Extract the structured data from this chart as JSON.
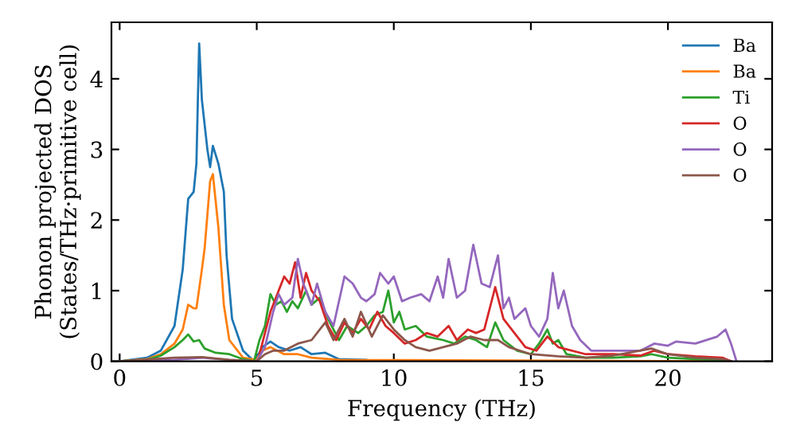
{
  "chart_data": {
    "type": "line",
    "xlabel": "Frequency (THz)",
    "ylabel": "Phonon projected DOS\n(States/THz·primitive cell)",
    "xlim": [
      -0.3,
      23.8
    ],
    "ylim": [
      0,
      4.8
    ],
    "xticks": [
      0,
      5,
      10,
      15,
      20
    ],
    "yticks": [
      0,
      1,
      2,
      3,
      4
    ],
    "grid": false,
    "legend": "top right",
    "marker": "none",
    "line_style": "solid",
    "series": [
      {
        "name": "Ba",
        "color": "#1f77b4",
        "x": [
          0,
          1,
          1.5,
          2,
          2.3,
          2.5,
          2.7,
          2.8,
          2.9,
          3.0,
          3.2,
          3.3,
          3.4,
          3.6,
          3.8,
          3.9,
          4.1,
          4.5,
          4.9,
          5.0,
          5.2,
          5.5,
          5.8,
          6.2,
          6.6,
          7,
          7.5,
          8,
          9
        ],
        "values": [
          0,
          0.05,
          0.15,
          0.5,
          1.3,
          2.3,
          2.4,
          2.8,
          4.5,
          3.7,
          3.0,
          2.75,
          3.05,
          2.8,
          2.4,
          1.5,
          0.6,
          0.15,
          0,
          0.05,
          0.2,
          0.28,
          0.2,
          0.15,
          0.2,
          0.1,
          0.12,
          0.03,
          0.02
        ]
      },
      {
        "name": "Ba",
        "color": "#ff7f0e",
        "x": [
          0,
          1,
          1.5,
          2,
          2.3,
          2.5,
          2.7,
          2.8,
          3.0,
          3.1,
          3.3,
          3.4,
          3.6,
          3.8,
          4.0,
          4.5,
          5,
          5.2,
          5.5,
          6,
          6.5,
          7,
          8,
          22.3
        ],
        "values": [
          0,
          0.03,
          0.1,
          0.25,
          0.45,
          0.8,
          0.75,
          0.75,
          1.3,
          1.6,
          2.55,
          2.65,
          1.9,
          0.8,
          0.3,
          0.05,
          0.02,
          0.15,
          0.2,
          0.1,
          0.1,
          0.05,
          0.02,
          0
        ]
      },
      {
        "name": "Ti",
        "color": "#2ca02c",
        "x": [
          0,
          1,
          1.5,
          2,
          2.3,
          2.5,
          2.7,
          2.9,
          3.1,
          3.5,
          4,
          4.5,
          4.9,
          5.1,
          5.3,
          5.5,
          5.7,
          5.9,
          6.1,
          6.3,
          6.5,
          6.8,
          7.0,
          7.3,
          7.6,
          8,
          8.3,
          8.7,
          9,
          9.3,
          9.6,
          9.8,
          10,
          10.2,
          10.4,
          10.8,
          11.2,
          11.8,
          12.2,
          12.6,
          13,
          13.4,
          13.7,
          14,
          14.5,
          15,
          15.3,
          15.6,
          15.8,
          16,
          16.3,
          17,
          18,
          19,
          19.4,
          20,
          21,
          22,
          22.3
        ],
        "values": [
          0,
          0.02,
          0.08,
          0.2,
          0.3,
          0.38,
          0.28,
          0.3,
          0.18,
          0.12,
          0.1,
          0.03,
          0,
          0.3,
          0.5,
          0.95,
          0.8,
          0.85,
          0.7,
          0.85,
          0.75,
          1.0,
          0.8,
          0.9,
          0.6,
          0.3,
          0.5,
          0.4,
          0.5,
          0.65,
          0.7,
          1.0,
          0.55,
          0.7,
          0.45,
          0.5,
          0.35,
          0.3,
          0.25,
          0.35,
          0.3,
          0.2,
          0.55,
          0.3,
          0.15,
          0.1,
          0.25,
          0.45,
          0.25,
          0.3,
          0.1,
          0.05,
          0.05,
          0.07,
          0.1,
          0.05,
          0.03,
          0.02,
          0
        ]
      },
      {
        "name": "O",
        "color": "#d62728",
        "x": [
          5.1,
          5.3,
          5.5,
          5.7,
          6.0,
          6.2,
          6.4,
          6.6,
          6.8,
          7.0,
          7.3,
          7.6,
          7.9,
          8.2,
          8.5,
          8.8,
          9.1,
          9.4,
          9.7,
          10,
          10.4,
          10.8,
          11.2,
          11.6,
          12,
          12.3,
          12.7,
          13,
          13.3,
          13.7,
          14,
          14.4,
          14.8,
          15.2,
          15.6,
          16,
          17,
          18,
          19,
          19.5,
          20,
          21,
          22,
          22.3
        ],
        "values": [
          0.1,
          0.4,
          0.7,
          0.9,
          1.2,
          1.1,
          1.4,
          0.9,
          1.25,
          1.0,
          0.85,
          0.5,
          0.3,
          0.55,
          0.4,
          0.6,
          0.45,
          0.7,
          0.5,
          0.4,
          0.25,
          0.3,
          0.4,
          0.35,
          0.5,
          0.3,
          0.45,
          0.4,
          0.45,
          1.05,
          0.6,
          0.4,
          0.2,
          0.15,
          0.35,
          0.2,
          0.1,
          0.1,
          0.08,
          0.15,
          0.1,
          0.07,
          0.05,
          0
        ]
      },
      {
        "name": "O",
        "color": "#9467bd",
        "x": [
          0,
          2,
          3,
          4,
          5,
          5.3,
          5.6,
          5.8,
          6.0,
          6.3,
          6.5,
          6.7,
          7.0,
          7.2,
          7.5,
          7.8,
          8.2,
          8.5,
          8.8,
          9.0,
          9.3,
          9.5,
          9.8,
          10,
          10.3,
          10.6,
          11,
          11.3,
          11.6,
          11.8,
          12.0,
          12.3,
          12.6,
          12.9,
          13.2,
          13.5,
          13.8,
          14,
          14.2,
          14.4,
          14.8,
          15,
          15.3,
          15.6,
          15.8,
          16,
          16.2,
          16.5,
          16.8,
          17.2,
          18,
          19,
          19.5,
          20,
          20.3,
          21,
          21.8,
          22.1,
          22.3,
          22.5
        ],
        "values": [
          0,
          0.02,
          0.05,
          0.02,
          0,
          0.2,
          0.7,
          0.95,
          0.8,
          0.9,
          1.45,
          1.1,
          0.8,
          1.1,
          0.7,
          0.5,
          1.2,
          1.1,
          0.9,
          0.85,
          0.95,
          1.25,
          1.1,
          1.2,
          0.85,
          0.9,
          0.95,
          0.85,
          1.2,
          0.9,
          1.45,
          0.9,
          1.0,
          1.65,
          1.1,
          1.05,
          1.5,
          0.75,
          0.9,
          0.6,
          0.75,
          0.5,
          0.35,
          0.6,
          1.25,
          0.75,
          1.0,
          0.5,
          0.3,
          0.15,
          0.15,
          0.15,
          0.25,
          0.22,
          0.28,
          0.25,
          0.35,
          0.45,
          0.25,
          0
        ]
      },
      {
        "name": "O",
        "color": "#8c564b",
        "x": [
          0,
          2,
          3,
          4,
          5,
          5.3,
          5.6,
          6,
          6.5,
          7,
          7.5,
          7.8,
          8.2,
          8.5,
          8.8,
          9.2,
          9.6,
          10,
          10.4,
          10.8,
          11.3,
          11.8,
          12.3,
          12.8,
          13.3,
          13.8,
          14.2,
          15,
          16,
          17,
          18,
          19.4,
          20,
          21,
          22,
          22.3
        ],
        "values": [
          0,
          0.05,
          0.06,
          0.02,
          0,
          0.1,
          0.15,
          0.15,
          0.25,
          0.3,
          0.55,
          0.3,
          0.6,
          0.35,
          0.7,
          0.35,
          0.65,
          0.45,
          0.3,
          0.2,
          0.15,
          0.2,
          0.25,
          0.35,
          0.3,
          0.3,
          0.2,
          0.1,
          0.07,
          0.05,
          0.08,
          0.18,
          0.1,
          0.05,
          0.03,
          0
        ]
      }
    ]
  }
}
